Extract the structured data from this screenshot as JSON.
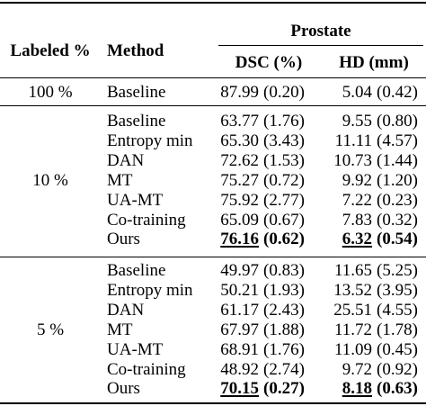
{
  "table": {
    "headers": {
      "labeled": "Labeled %",
      "method": "Method",
      "group": "Prostate",
      "dsc": "DSC (%)",
      "hd": "HD (mm)"
    },
    "sections": [
      {
        "label": "100 %",
        "rows": [
          {
            "method": "Baseline",
            "dsc": "87.99",
            "dsc_sd": "(0.20)",
            "hd": "5.04",
            "hd_sd": "(0.42)"
          }
        ]
      },
      {
        "label": "10 %",
        "rows": [
          {
            "method": "Baseline",
            "dsc": "63.77",
            "dsc_sd": "(1.76)",
            "hd": "9.55",
            "hd_sd": "(0.80)"
          },
          {
            "method": "Entropy min",
            "dsc": "65.30",
            "dsc_sd": "(3.43)",
            "hd": "11.11",
            "hd_sd": "(4.57)"
          },
          {
            "method": "DAN",
            "dsc": "72.62",
            "dsc_sd": "(1.53)",
            "hd": "10.73",
            "hd_sd": "(1.44)"
          },
          {
            "method": "MT",
            "dsc": "75.27",
            "dsc_sd": "(0.72)",
            "hd": "9.92",
            "hd_sd": "(1.20)"
          },
          {
            "method": "UA-MT",
            "dsc": "75.92",
            "dsc_sd": "(2.77)",
            "hd": "7.22",
            "hd_sd": "(0.23)"
          },
          {
            "method": "Co-training",
            "dsc": "65.09",
            "dsc_sd": "(0.67)",
            "hd": "7.83",
            "hd_sd": "(0.32)"
          },
          {
            "method": "Ours",
            "dsc": "76.16",
            "dsc_sd": "(0.62)",
            "hd": "6.32",
            "hd_sd": "(0.54)",
            "best": true
          }
        ]
      },
      {
        "label": "5 %",
        "rows": [
          {
            "method": "Baseline",
            "dsc": "49.97",
            "dsc_sd": "(0.83)",
            "hd": "11.65",
            "hd_sd": "(5.25)"
          },
          {
            "method": "Entropy min",
            "dsc": "50.21",
            "dsc_sd": "(1.93)",
            "hd": "13.52",
            "hd_sd": "(3.95)"
          },
          {
            "method": "DAN",
            "dsc": "61.17",
            "dsc_sd": "(2.43)",
            "hd": "25.51",
            "hd_sd": "(4.55)"
          },
          {
            "method": "MT",
            "dsc": "67.97",
            "dsc_sd": "(1.88)",
            "hd": "11.72",
            "hd_sd": "(1.78)"
          },
          {
            "method": "UA-MT",
            "dsc": "68.91",
            "dsc_sd": "(1.76)",
            "hd": "11.09",
            "hd_sd": "(0.45)"
          },
          {
            "method": "Co-training",
            "dsc": "48.92",
            "dsc_sd": "(2.74)",
            "hd": "9.72",
            "hd_sd": "(0.92)"
          },
          {
            "method": "Ours",
            "dsc": "70.15",
            "dsc_sd": "(0.27)",
            "hd": "8.18",
            "hd_sd": "(0.63)",
            "best": true
          }
        ]
      }
    ]
  }
}
